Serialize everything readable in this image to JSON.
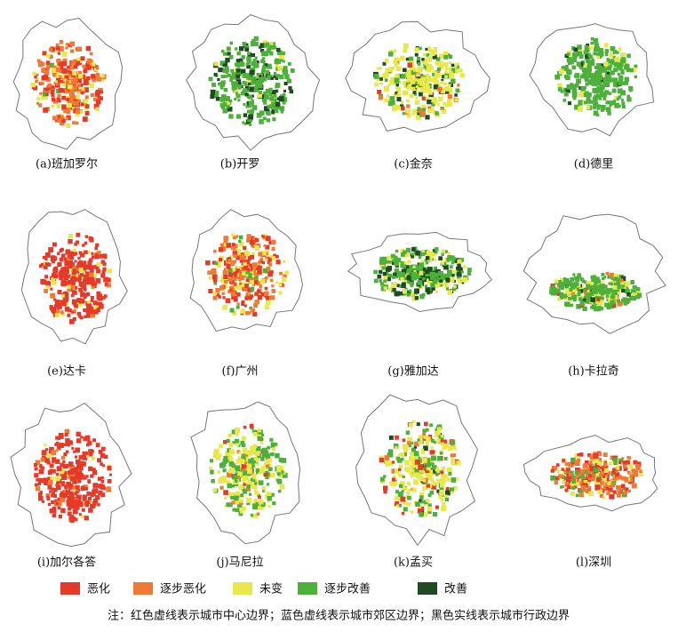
{
  "panels": [
    {
      "label": "(a)班加罗尔"
    },
    {
      "label": "(b)开罗"
    },
    {
      "label": "(c)金奈"
    },
    {
      "label": "(d)德里"
    },
    {
      "label": "(e)达卡"
    },
    {
      "label": "(f)广州"
    },
    {
      "label": "(g)雅加达"
    },
    {
      "label": "(h)卡拉奇"
    },
    {
      "label": "(i)加尔各答"
    },
    {
      "label": "(j)马尼拉"
    },
    {
      "label": "(k)孟买"
    },
    {
      "label": "(l)深圳"
    }
  ],
  "legend": [
    {
      "name": "恶化",
      "color": "#e53a2a"
    },
    {
      "name": "逐步恶化",
      "color": "#f07a35"
    },
    {
      "name": "未变",
      "color": "#e8e84a"
    },
    {
      "name": "逐步改善",
      "color": "#4cb03a"
    },
    {
      "name": "改善",
      "color": "#1f4a22"
    }
  ],
  "note": "注：红色虚线表示城市中心边界；蓝色虚线表示城市郊区边界；黑色实线表示城市行政边界"
}
